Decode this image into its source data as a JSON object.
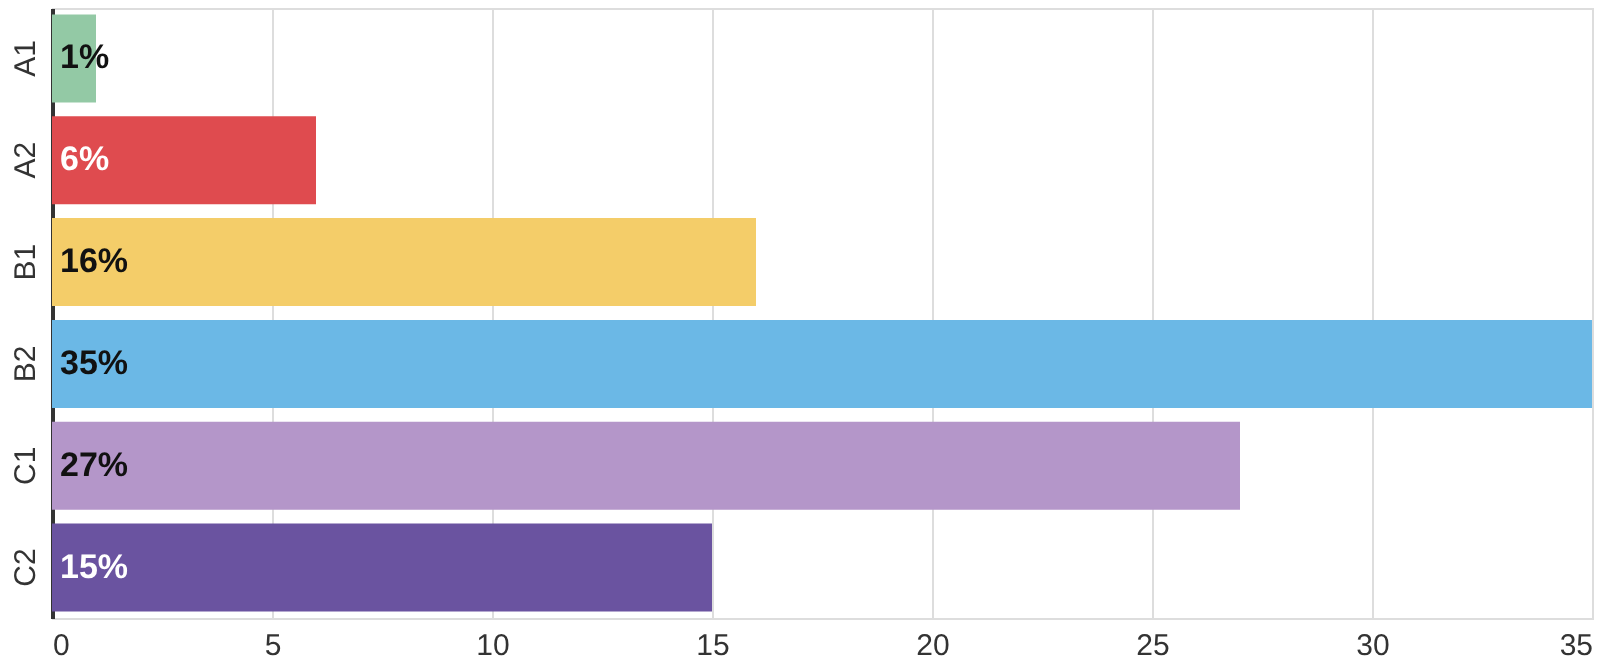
{
  "chart_data": {
    "type": "bar",
    "orientation": "horizontal",
    "categories": [
      "A1",
      "A2",
      "B1",
      "B2",
      "C1",
      "C2"
    ],
    "values": [
      1,
      6,
      16,
      35,
      27,
      15
    ],
    "colors": [
      "#93c9a5",
      "#df4b4f",
      "#f4cd69",
      "#6bb8e6",
      "#b496c9",
      "#6a53a0"
    ],
    "value_labels": [
      "1%",
      "6%",
      "16%",
      "35%",
      "27%",
      "15%"
    ],
    "xlim": [
      0,
      35
    ],
    "xticks": [
      0,
      5,
      10,
      15,
      20,
      25,
      30,
      35
    ],
    "grid": "x"
  }
}
